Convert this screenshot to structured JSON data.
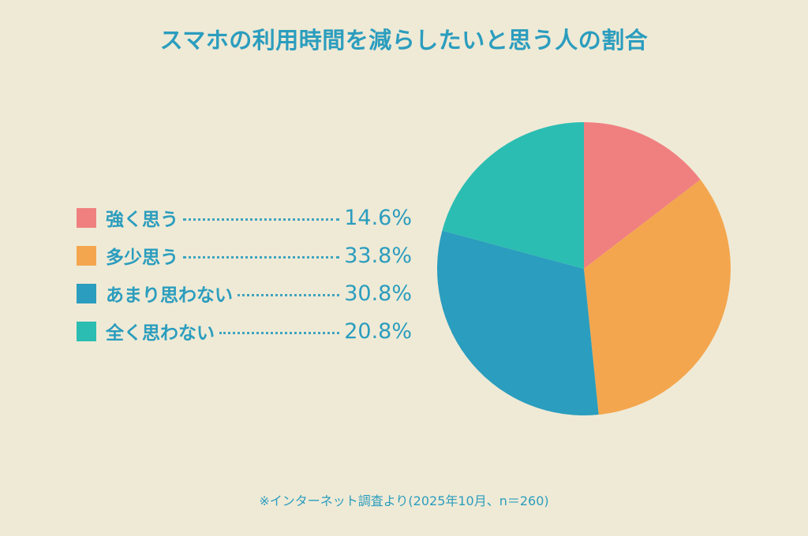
{
  "title": "スマホの利用時間を減らしたいと思う人の割合",
  "legend": [
    {
      "label": "強く思う",
      "value": "14.6%",
      "color": "#f08080"
    },
    {
      "label": "多少思う",
      "value": "33.8%",
      "color": "#f4a64e"
    },
    {
      "label": "あまり思わない",
      "value": "30.8%",
      "color": "#2b9dbe"
    },
    {
      "label": "全く思わない",
      "value": "20.8%",
      "color": "#2bbdb2"
    }
  ],
  "footnote": "※インターネット調査より(2025年10月、n＝260)",
  "chart_data": {
    "type": "pie",
    "title": "スマホの利用時間を減らしたいと思う人の割合",
    "categories": [
      "強く思う",
      "多少思う",
      "あまり思わない",
      "全く思わない"
    ],
    "values": [
      14.6,
      33.8,
      30.8,
      20.8
    ],
    "unit": "%",
    "colors": [
      "#f08080",
      "#f4a64e",
      "#2b9dbe",
      "#2bbdb2"
    ],
    "start_angle": "12 o'clock",
    "direction": "clockwise",
    "legend_position": "left",
    "note": "※インターネット調査より(2025年10月、n＝260)"
  }
}
